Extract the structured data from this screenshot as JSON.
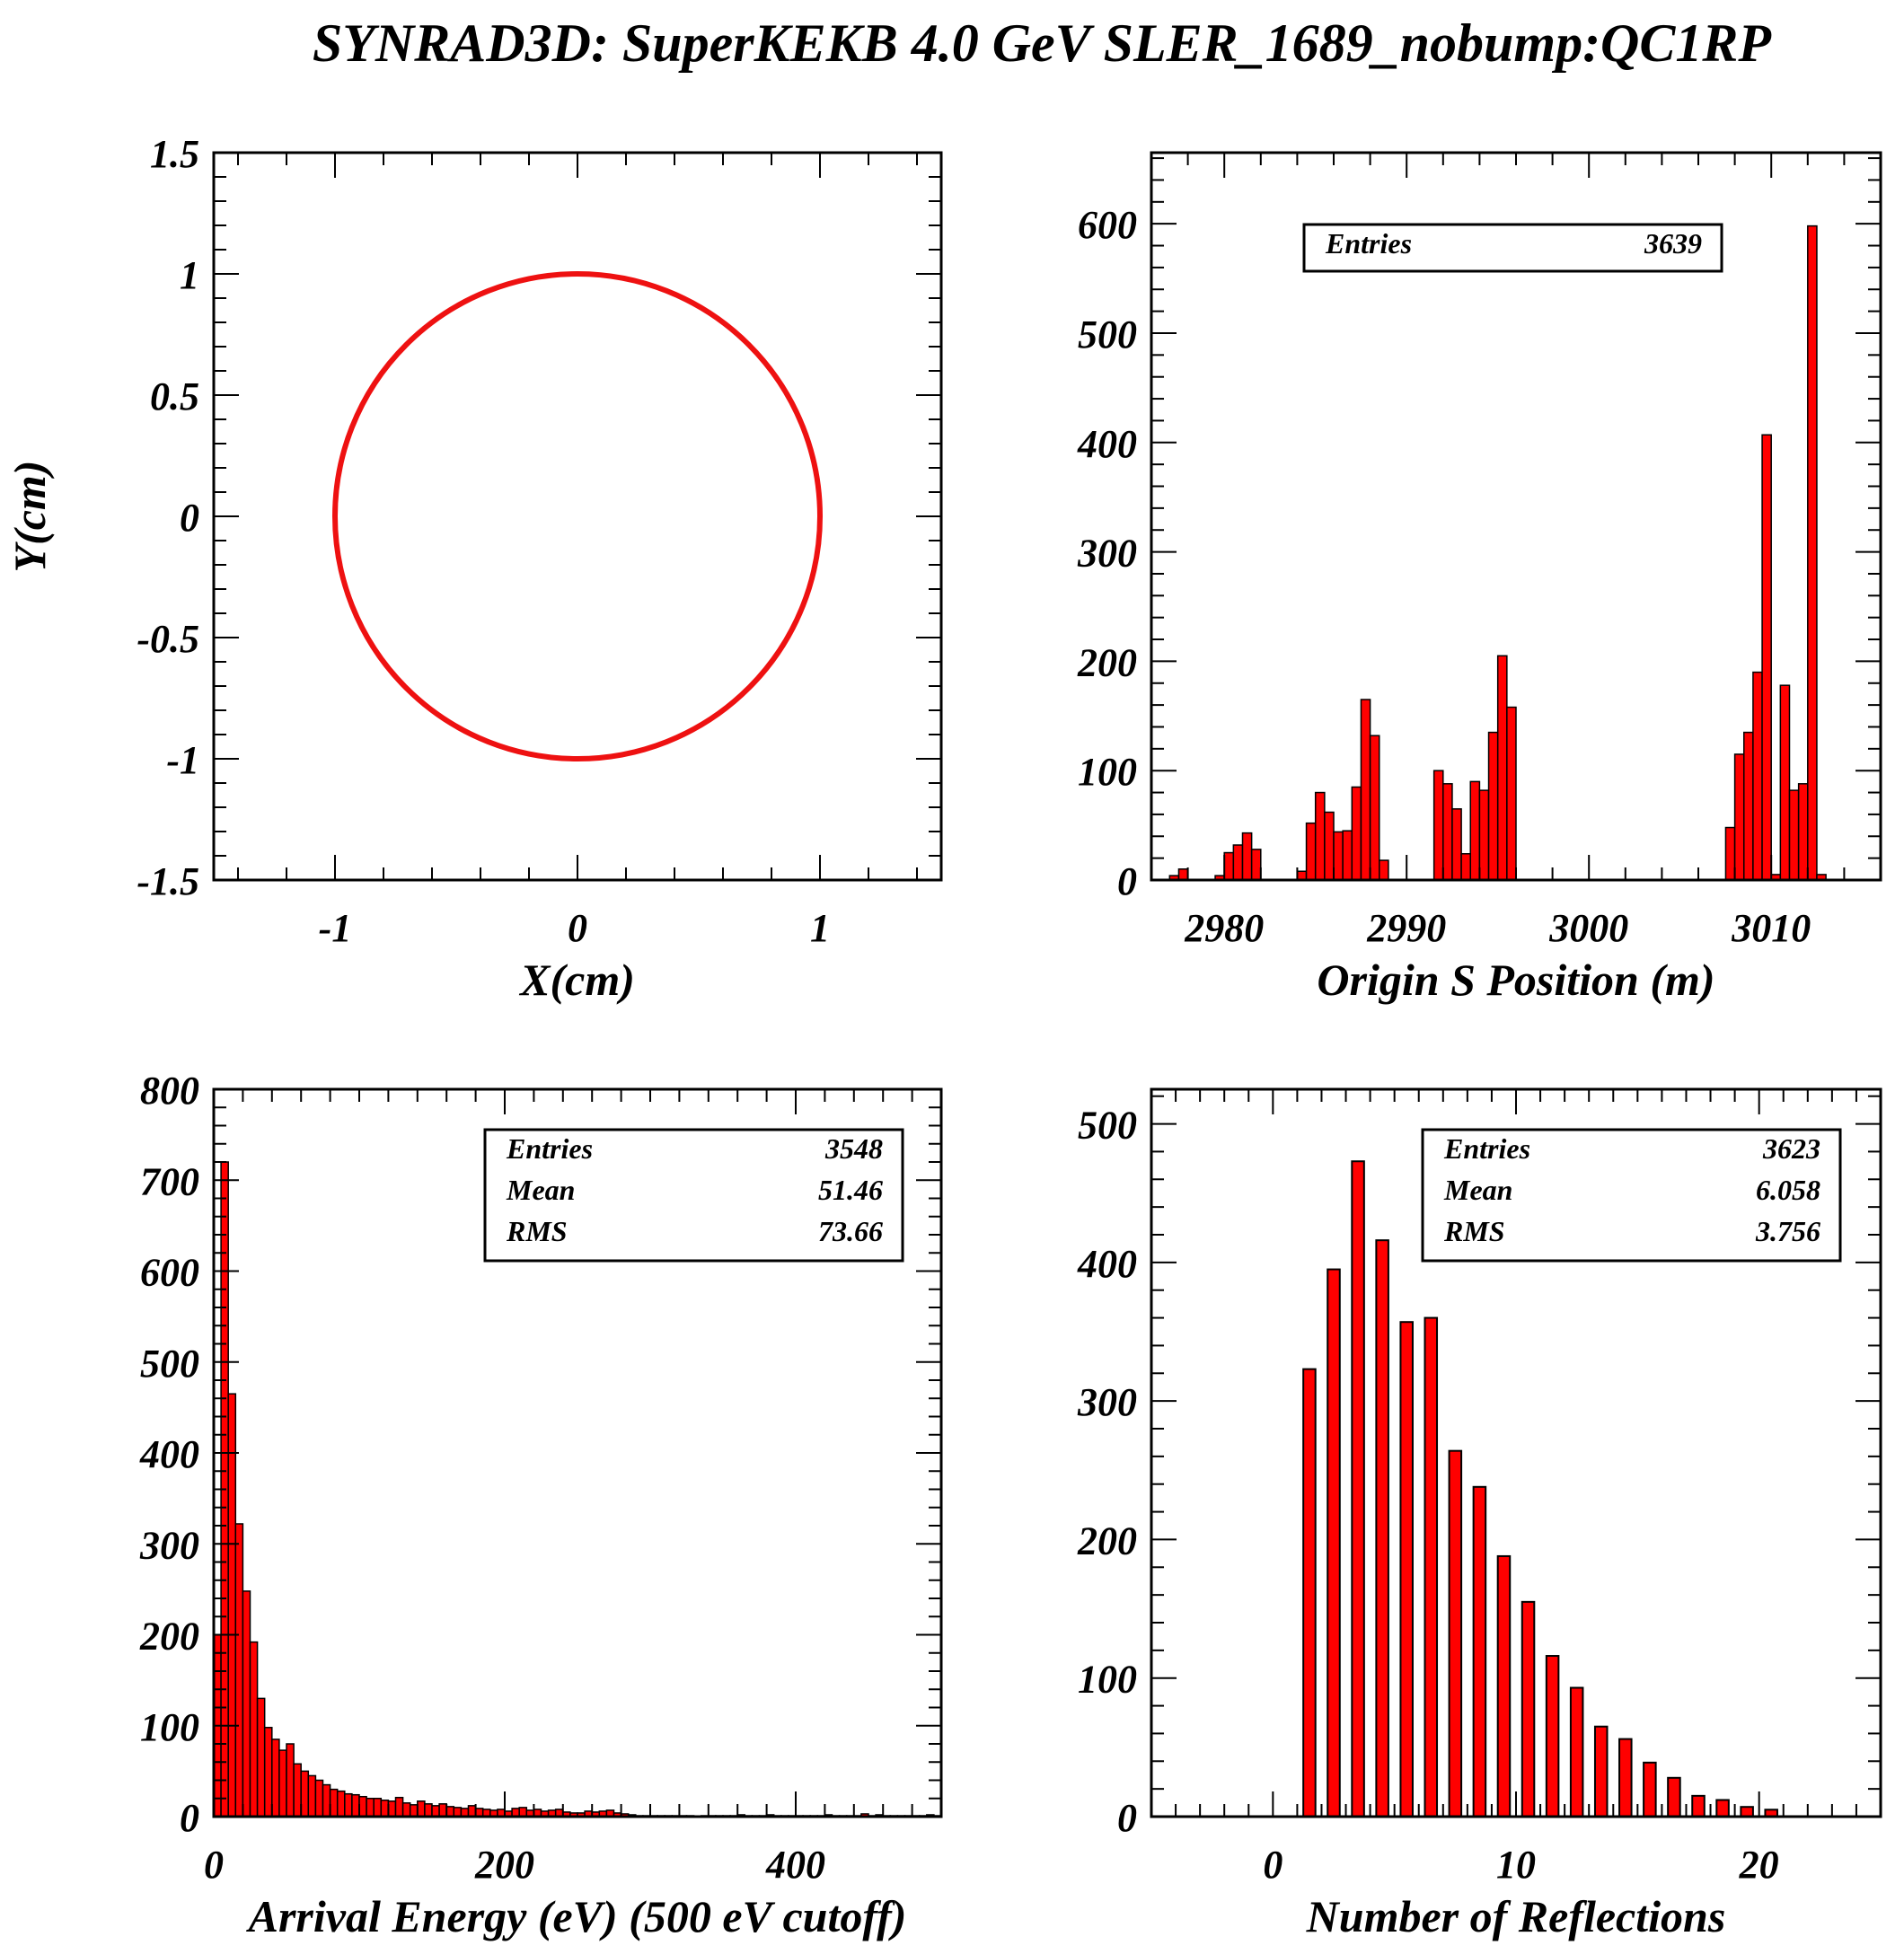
{
  "title": "SYNRAD3D: SuperKEKB 4.0 GeV SLER_1689_nobump:QC1RP",
  "colors": {
    "fill": "#ff0000",
    "stroke": "#000000",
    "marker": "#ee1111"
  },
  "chart_data": [
    {
      "id": "xy",
      "type": "scatter",
      "xlabel": "X(cm)",
      "ylabel": "Y(cm)",
      "xlim": [
        -1.5,
        1.5
      ],
      "ylim": [
        -1.5,
        1.5
      ],
      "xticks": [
        -1,
        0,
        1
      ],
      "xtick_labels": [
        "-1",
        "0",
        "1"
      ],
      "yticks": [
        -1.5,
        -1,
        -0.5,
        0,
        0.5,
        1,
        1.5
      ],
      "ytick_labels": [
        "-1.5",
        "-1",
        "-0.5",
        "0",
        "0.5",
        "1",
        "1.5"
      ],
      "x_minor": 0.2,
      "y_minor": 0.1,
      "shape": "circle",
      "center": [
        0,
        0
      ],
      "radius": 1.0,
      "stats": []
    },
    {
      "id": "origin",
      "type": "bar",
      "xlabel": "Origin S Position (m)",
      "ylabel": "",
      "xlim": [
        2976,
        3016
      ],
      "ylim": [
        0,
        665
      ],
      "xticks": [
        2980,
        2990,
        3000,
        3010
      ],
      "xtick_labels": [
        "2980",
        "2990",
        "3000",
        "3010"
      ],
      "yticks": [
        0,
        100,
        200,
        300,
        400,
        500,
        600
      ],
      "ytick_labels": [
        "0",
        "100",
        "200",
        "300",
        "400",
        "500",
        "600"
      ],
      "x_minor": 2,
      "y_minor": 20,
      "bin_start": 2976,
      "bin_width": 0.5,
      "values": [
        0,
        0,
        4,
        10,
        0,
        0,
        0,
        4,
        25,
        32,
        43,
        28,
        0,
        0,
        0,
        0,
        8,
        52,
        80,
        62,
        44,
        45,
        85,
        165,
        132,
        18,
        0,
        0,
        0,
        0,
        0,
        100,
        88,
        65,
        24,
        90,
        82,
        135,
        205,
        158,
        0,
        0,
        0,
        0,
        0,
        0,
        0,
        0,
        0,
        0,
        0,
        0,
        0,
        0,
        0,
        0,
        0,
        0,
        0,
        0,
        0,
        0,
        0,
        48,
        115,
        135,
        190,
        407,
        5,
        178,
        82,
        88,
        598,
        5,
        0,
        0,
        0,
        0,
        0,
        0
      ],
      "stats": [
        {
          "label": "Entries",
          "value": "3639"
        }
      ]
    },
    {
      "id": "energy",
      "type": "bar",
      "xlabel": "Arrival Energy (eV) (500 eV cutoff)",
      "ylabel": "",
      "xlim": [
        0,
        500
      ],
      "ylim": [
        0,
        800
      ],
      "xticks": [
        0,
        200,
        400
      ],
      "xtick_labels": [
        "0",
        "200",
        "400"
      ],
      "yticks": [
        0,
        100,
        200,
        300,
        400,
        500,
        600,
        700,
        800
      ],
      "ytick_labels": [
        "0",
        "100",
        "200",
        "300",
        "400",
        "500",
        "600",
        "700",
        "800"
      ],
      "x_minor": 20,
      "y_minor": 20,
      "bin_start": 0,
      "bin_width": 5,
      "values": [
        200,
        720,
        465,
        322,
        248,
        192,
        130,
        98,
        85,
        73,
        80,
        58,
        50,
        45,
        40,
        35,
        30,
        28,
        25,
        24,
        22,
        20,
        20,
        18,
        17,
        21,
        15,
        13,
        17,
        14,
        12,
        14,
        11,
        10,
        9,
        12,
        9,
        8,
        7,
        8,
        6,
        9,
        10,
        7,
        8,
        6,
        7,
        8,
        5,
        4,
        4,
        6,
        5,
        6,
        7,
        4,
        3,
        2,
        1,
        1,
        1,
        1,
        1,
        1,
        1,
        1,
        0,
        1,
        1,
        1,
        1,
        1,
        2,
        1,
        1,
        1,
        2,
        1,
        1,
        1,
        1,
        1,
        1,
        1,
        2,
        1,
        1,
        1,
        1,
        3,
        1,
        2,
        1,
        1,
        1,
        1,
        1,
        1,
        2,
        1
      ],
      "stats": [
        {
          "label": "Entries",
          "value": "3548"
        },
        {
          "label": "Mean",
          "value": "51.46"
        },
        {
          "label": "RMS",
          "value": "73.66"
        }
      ]
    },
    {
      "id": "reflections",
      "type": "bar",
      "xlabel": "Number of Reflections",
      "ylabel": "",
      "xlim": [
        -5,
        25
      ],
      "ylim": [
        0,
        525
      ],
      "xticks": [
        0,
        10,
        20
      ],
      "xtick_labels": [
        "0",
        "10",
        "20"
      ],
      "yticks": [
        0,
        100,
        200,
        300,
        400,
        500
      ],
      "ytick_labels": [
        "0",
        "100",
        "200",
        "300",
        "400",
        "500"
      ],
      "x_minor": 1,
      "y_minor": 20,
      "bin_start": 1,
      "bin_width": 1,
      "bar_width": 0.5,
      "values": [
        323,
        395,
        473,
        416,
        357,
        360,
        264,
        238,
        188,
        155,
        116,
        93,
        65,
        56,
        39,
        28,
        15,
        12,
        7,
        5
      ],
      "stats": [
        {
          "label": "Entries",
          "value": "3623"
        },
        {
          "label": "Mean",
          "value": "6.058"
        },
        {
          "label": "RMS",
          "value": "3.756"
        }
      ]
    }
  ]
}
